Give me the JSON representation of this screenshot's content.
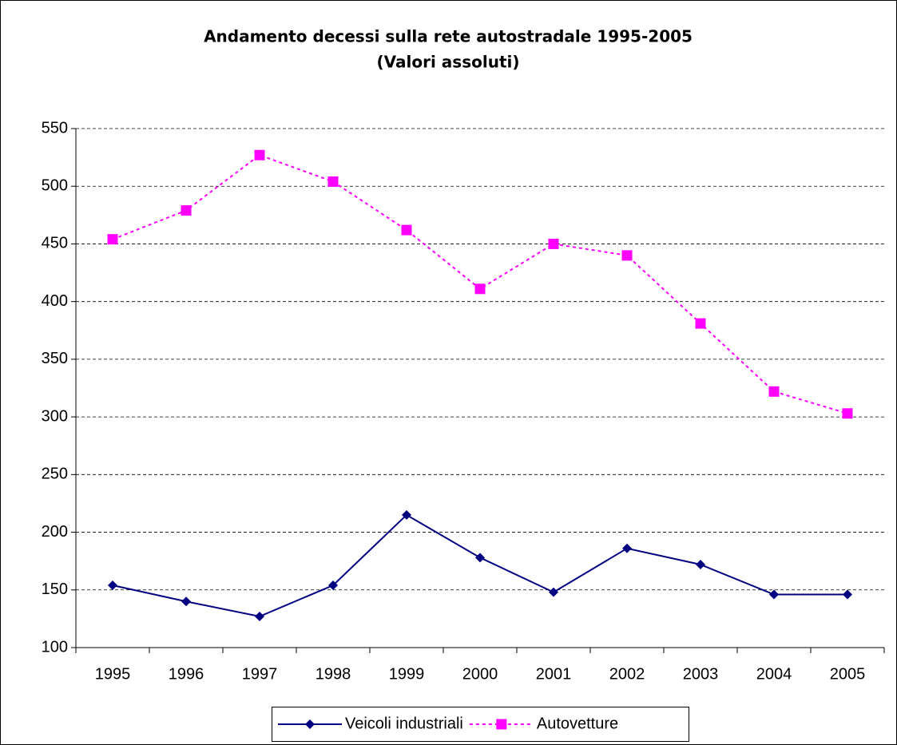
{
  "chart_data": {
    "type": "line",
    "title": "Andamento decessi sulla rete autostradale 1995-2005",
    "subtitle": "(Valori assoluti)",
    "categories": [
      "1995",
      "1996",
      "1997",
      "1998",
      "1999",
      "2000",
      "2001",
      "2002",
      "2003",
      "2004",
      "2005"
    ],
    "series": [
      {
        "name": "Veicoli industriali",
        "color": "#000080",
        "line_style": "solid",
        "marker": "diamond",
        "values": [
          154,
          140,
          127,
          154,
          215,
          178,
          148,
          186,
          172,
          146,
          146
        ]
      },
      {
        "name": "Autovetture",
        "color": "#ff00ff",
        "line_style": "dashed",
        "marker": "square",
        "values": [
          454,
          479,
          527,
          504,
          462,
          411,
          450,
          440,
          381,
          322,
          303
        ]
      }
    ],
    "ylim": [
      100,
      550
    ],
    "yticks": [
      100,
      150,
      200,
      250,
      300,
      350,
      400,
      450,
      500,
      550
    ],
    "grid": true,
    "legend": "bottom"
  }
}
